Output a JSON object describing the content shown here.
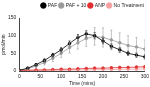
{
  "chart_data": {
    "type": "line",
    "x_label": "Time (mins)",
    "y_label": "pmol/min",
    "x": [
      0,
      20,
      40,
      60,
      80,
      100,
      120,
      140,
      160,
      180,
      200,
      220,
      240,
      260,
      280,
      300
    ],
    "series": [
      {
        "name": "PAF",
        "color": "#000000",
        "marker": "circle",
        "values": [
          2,
          8,
          18,
          30,
          45,
          60,
          78,
          95,
          105,
          100,
          85,
          70,
          60,
          50,
          45,
          40
        ],
        "errors": [
          1,
          2,
          3,
          4,
          5,
          6,
          7,
          8,
          9,
          9,
          8,
          7,
          7,
          6,
          6,
          6
        ]
      },
      {
        "name": "PAF + 10",
        "color": "#9a9a9a",
        "marker": "circle",
        "values": [
          2,
          6,
          14,
          24,
          36,
          50,
          66,
          80,
          92,
          98,
          95,
          88,
          80,
          72,
          68,
          62
        ],
        "errors": [
          2,
          3,
          5,
          7,
          9,
          12,
          15,
          18,
          22,
          25,
          27,
          28,
          28,
          28,
          27,
          26
        ]
      },
      {
        "name": "ANP",
        "color": "#e03030",
        "marker": "circle",
        "values": [
          1,
          2,
          3,
          3,
          4,
          5,
          5,
          6,
          7,
          8,
          8,
          9,
          10,
          10,
          11,
          12
        ],
        "errors": [
          1,
          1,
          1,
          1,
          1,
          2,
          2,
          2,
          2,
          2,
          2,
          3,
          3,
          3,
          3,
          3
        ]
      },
      {
        "name": "No Treatment",
        "color": "#f4a0a0",
        "marker": "circle",
        "values": [
          0,
          1,
          1,
          2,
          2,
          2,
          3,
          3,
          3,
          4,
          4,
          4,
          5,
          5,
          5,
          6
        ],
        "errors": [
          1,
          1,
          1,
          1,
          1,
          1,
          1,
          1,
          1,
          1,
          1,
          1,
          1,
          1,
          1,
          1
        ]
      }
    ],
    "xlim": [
      0,
      300
    ],
    "xticks": [
      0,
      50,
      100,
      150,
      200,
      250,
      300
    ],
    "ylim": [
      0,
      150
    ],
    "yticks": [
      0,
      50,
      100,
      150
    ],
    "grid": false,
    "legend": "top-right"
  }
}
